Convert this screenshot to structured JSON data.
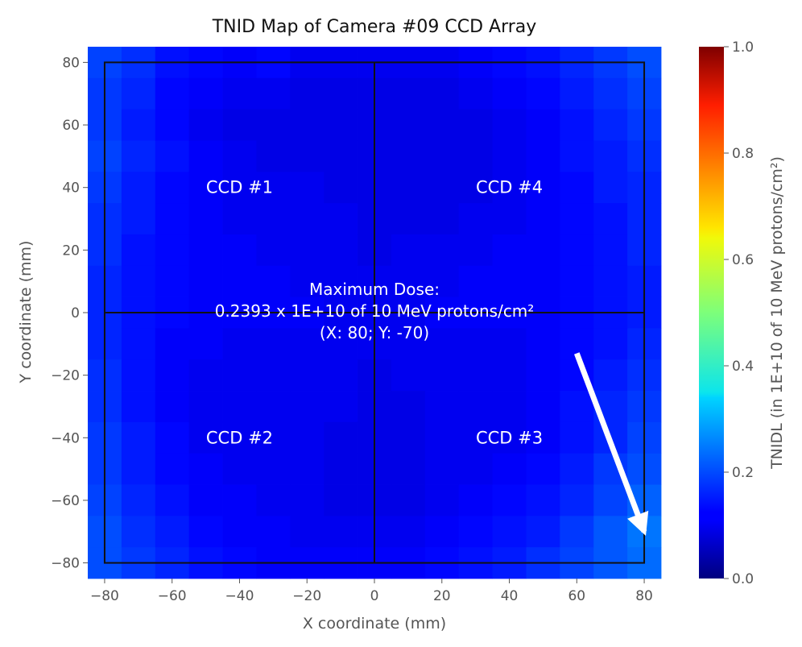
{
  "chart_data": {
    "type": "heatmap",
    "title": "TNID Map of Camera #09 CCD Array",
    "xlabel": "X coordinate (mm)",
    "ylabel": "Y coordinate (mm)",
    "xlim": [
      -85,
      85
    ],
    "ylim": [
      -85,
      85
    ],
    "xticks": [
      -80,
      -60,
      -40,
      -20,
      0,
      20,
      40,
      60,
      80
    ],
    "yticks": [
      -80,
      -60,
      -40,
      -20,
      0,
      20,
      40,
      60,
      80
    ],
    "xtick_labels": [
      "−80",
      "−60",
      "−40",
      "−20",
      "0",
      "20",
      "40",
      "60",
      "80"
    ],
    "ytick_labels": [
      "−80",
      "−60",
      "−40",
      "−20",
      "0",
      "20",
      "40",
      "60",
      "80"
    ],
    "grid_x_centers": [
      -80,
      -70,
      -60,
      -50,
      -40,
      -30,
      -20,
      -10,
      0,
      10,
      20,
      30,
      40,
      50,
      60,
      70,
      80
    ],
    "grid_y_centers": [
      80,
      70,
      60,
      50,
      40,
      30,
      20,
      10,
      0,
      -10,
      -20,
      -30,
      -40,
      -50,
      -60,
      -70,
      -80
    ],
    "z": [
      [
        0.19,
        0.17,
        0.14,
        0.13,
        0.12,
        0.13,
        0.11,
        0.11,
        0.11,
        0.11,
        0.11,
        0.12,
        0.13,
        0.14,
        0.16,
        0.18,
        0.2
      ],
      [
        0.18,
        0.16,
        0.13,
        0.12,
        0.11,
        0.11,
        0.1,
        0.1,
        0.1,
        0.1,
        0.1,
        0.11,
        0.12,
        0.13,
        0.15,
        0.17,
        0.19
      ],
      [
        0.18,
        0.15,
        0.13,
        0.11,
        0.1,
        0.1,
        0.1,
        0.1,
        0.1,
        0.1,
        0.1,
        0.1,
        0.11,
        0.12,
        0.14,
        0.16,
        0.18
      ],
      [
        0.19,
        0.16,
        0.14,
        0.12,
        0.11,
        0.1,
        0.1,
        0.1,
        0.1,
        0.1,
        0.1,
        0.1,
        0.11,
        0.12,
        0.14,
        0.15,
        0.17
      ],
      [
        0.18,
        0.15,
        0.13,
        0.12,
        0.11,
        0.11,
        0.11,
        0.1,
        0.1,
        0.1,
        0.1,
        0.1,
        0.11,
        0.12,
        0.13,
        0.15,
        0.16
      ],
      [
        0.17,
        0.15,
        0.13,
        0.12,
        0.11,
        0.11,
        0.11,
        0.11,
        0.1,
        0.1,
        0.1,
        0.11,
        0.11,
        0.12,
        0.13,
        0.14,
        0.16
      ],
      [
        0.17,
        0.14,
        0.13,
        0.12,
        0.12,
        0.11,
        0.11,
        0.11,
        0.1,
        0.11,
        0.11,
        0.11,
        0.12,
        0.12,
        0.13,
        0.14,
        0.16
      ],
      [
        0.16,
        0.14,
        0.13,
        0.12,
        0.12,
        0.12,
        0.11,
        0.11,
        0.11,
        0.11,
        0.11,
        0.12,
        0.12,
        0.12,
        0.13,
        0.14,
        0.15
      ],
      [
        0.16,
        0.14,
        0.13,
        0.12,
        0.12,
        0.12,
        0.12,
        0.11,
        0.11,
        0.11,
        0.12,
        0.12,
        0.12,
        0.12,
        0.13,
        0.14,
        0.15
      ],
      [
        0.16,
        0.14,
        0.12,
        0.12,
        0.11,
        0.11,
        0.11,
        0.11,
        0.11,
        0.11,
        0.11,
        0.11,
        0.11,
        0.12,
        0.13,
        0.14,
        0.16
      ],
      [
        0.17,
        0.14,
        0.12,
        0.11,
        0.11,
        0.11,
        0.11,
        0.11,
        0.1,
        0.11,
        0.11,
        0.11,
        0.11,
        0.12,
        0.13,
        0.15,
        0.17
      ],
      [
        0.17,
        0.14,
        0.12,
        0.11,
        0.11,
        0.11,
        0.11,
        0.11,
        0.1,
        0.1,
        0.11,
        0.11,
        0.11,
        0.12,
        0.14,
        0.16,
        0.18
      ],
      [
        0.18,
        0.15,
        0.13,
        0.11,
        0.11,
        0.11,
        0.11,
        0.1,
        0.1,
        0.1,
        0.11,
        0.11,
        0.11,
        0.12,
        0.14,
        0.16,
        0.19
      ],
      [
        0.18,
        0.15,
        0.13,
        0.12,
        0.11,
        0.11,
        0.11,
        0.1,
        0.1,
        0.1,
        0.11,
        0.11,
        0.12,
        0.13,
        0.15,
        0.18,
        0.2
      ],
      [
        0.19,
        0.16,
        0.14,
        0.12,
        0.12,
        0.11,
        0.11,
        0.1,
        0.1,
        0.1,
        0.11,
        0.12,
        0.13,
        0.14,
        0.16,
        0.19,
        0.22
      ],
      [
        0.2,
        0.17,
        0.15,
        0.13,
        0.12,
        0.12,
        0.11,
        0.11,
        0.11,
        0.11,
        0.12,
        0.13,
        0.14,
        0.15,
        0.18,
        0.21,
        0.2393
      ],
      [
        0.2,
        0.18,
        0.16,
        0.14,
        0.13,
        0.12,
        0.12,
        0.12,
        0.12,
        0.12,
        0.13,
        0.14,
        0.15,
        0.17,
        0.19,
        0.21,
        0.23
      ]
    ],
    "colormap": "jet",
    "vmin": 0.0,
    "vmax": 1.0,
    "colorbar": {
      "label": "TNIDL (in 1E+10 of 10 MeV protons/cm²)",
      "ticks": [
        0.0,
        0.2,
        0.4,
        0.6,
        0.8,
        1.0
      ],
      "tick_labels": [
        "0.0",
        "0.2",
        "0.4",
        "0.6",
        "0.8",
        "1.0"
      ]
    },
    "ccd_outline": {
      "x": [
        -80,
        80
      ],
      "y": [
        -80,
        80
      ],
      "split_x": 0,
      "split_y": 0
    },
    "ccd_labels": [
      {
        "text": "CCD #1",
        "x": -40,
        "y": 40
      },
      {
        "text": "CCD #4",
        "x": 40,
        "y": 40
      },
      {
        "text": "CCD #2",
        "x": -40,
        "y": -40
      },
      {
        "text": "CCD #3",
        "x": 40,
        "y": -40
      }
    ],
    "annotation": {
      "lines": [
        "Maximum Dose:",
        "0.2393 x 1E+10 of 10 MeV protons/cm²",
        "(X: 80; Y: -70)"
      ],
      "max_value": 0.2393,
      "max_x": 80,
      "max_y": -70,
      "arrow_from": {
        "x": 60,
        "y": -13
      },
      "arrow_to": {
        "x": 80,
        "y": -70
      }
    }
  }
}
